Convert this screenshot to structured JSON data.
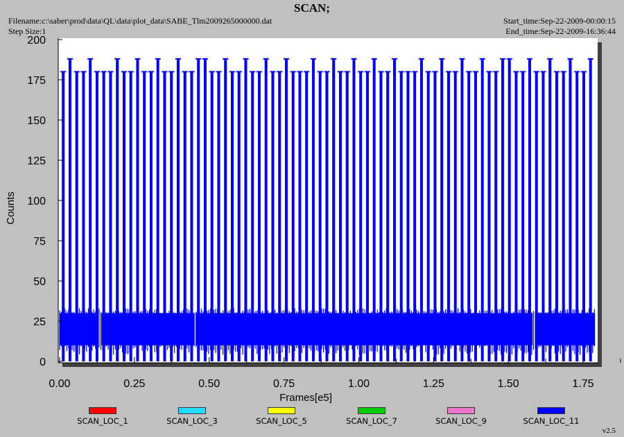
{
  "header": {
    "title": "SCAN;",
    "filename": "Filename:c:\\saber\\prod\\data\\QL\\data\\plot_data\\SABE_Tlm2009265000000.dat",
    "step_size": "Step Size:1",
    "start_time": "Start_time:Sep-22-2009-00:00:15",
    "end_time": "End_time:Sep-22-2009-16:36:44"
  },
  "version": "v2.5",
  "colors": {
    "background": "#c0c0c0",
    "plot_background": "#ffffff",
    "series_main": "#0000ff",
    "SCAN_LOC_1": "#ff0000",
    "SCAN_LOC_3": "#22ddff",
    "SCAN_LOC_5": "#ffff00",
    "SCAN_LOC_7": "#00cc00",
    "SCAN_LOC_9": "#ee77cc",
    "SCAN_LOC_11": "#0000ff"
  },
  "chart_data": {
    "type": "line",
    "title": "SCAN;",
    "xlabel": "Frames[e5]",
    "ylabel": "Counts",
    "xlim": [
      0,
      1.875
    ],
    "ylim": [
      0,
      200
    ],
    "x_ticks": [
      "0.00",
      "0.25",
      "0.50",
      "0.75",
      "1.00",
      "1.25",
      "1.50",
      "1.75"
    ],
    "y_ticks": [
      "0",
      "25",
      "50",
      "75",
      "100",
      "125",
      "150",
      "175",
      "200"
    ],
    "grid": false,
    "legend_position": "bottom",
    "legend": [
      "SCAN_LOC_1",
      "SCAN_LOC_3",
      "SCAN_LOC_5",
      "SCAN_LOC_7",
      "SCAN_LOC_9",
      "SCAN_LOC_11"
    ],
    "series": [
      {
        "name": "SCAN_LOC_11",
        "pattern": "periodic scan spikes",
        "x_start": 0.0,
        "x_end": 1.79,
        "spike_period": 0.0226,
        "spike_peak": 180,
        "tall_spike_peak": 188,
        "tall_spike_period": 0.0726,
        "baseline_band": [
          10,
          30
        ],
        "baseline_band_gaps": [
          [
            0.125,
            0.14
          ],
          [
            0.45,
            0.455
          ],
          [
            1.58,
            1.59
          ]
        ]
      }
    ]
  }
}
